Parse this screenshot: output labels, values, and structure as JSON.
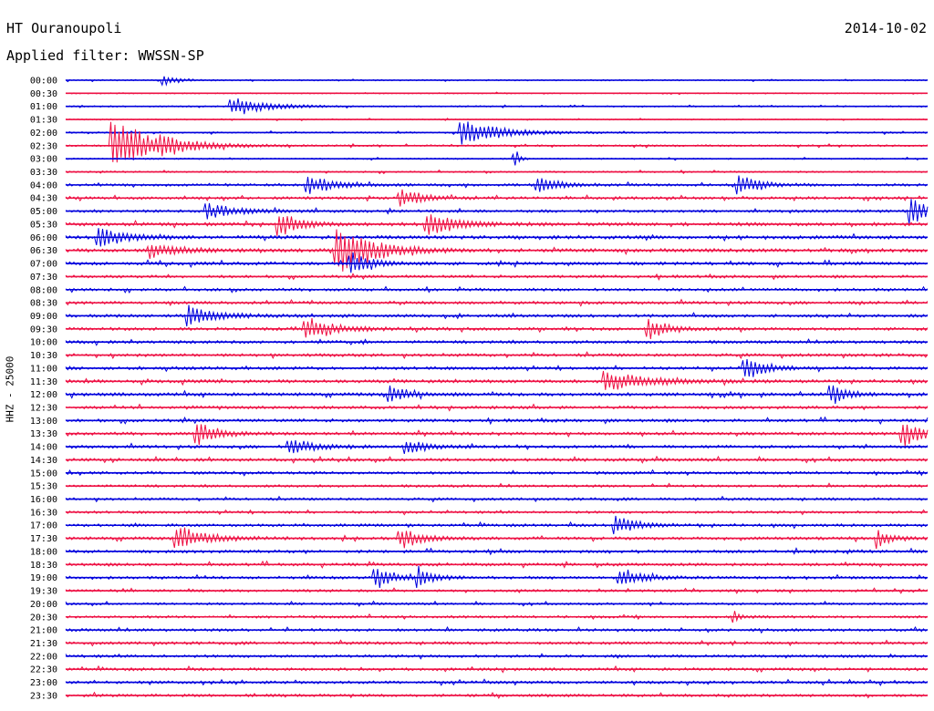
{
  "header": {
    "station": "HT Ouranoupoli",
    "date": "2014-10-02",
    "filter": "Applied filter: WWSSN-SP"
  },
  "chart_data": {
    "type": "line",
    "title": "HT Ouranoupoli",
    "subtitle": "Applied filter: WWSSN-SP",
    "ylabel": "HHZ - 25000",
    "xlabel": "",
    "grid": false,
    "colors": [
      "#0000dd",
      "#ee1144"
    ],
    "tick_labels": [
      "00:00",
      "00:30",
      "01:00",
      "01:30",
      "02:00",
      "02:30",
      "03:00",
      "03:30",
      "04:00",
      "04:30",
      "05:00",
      "05:30",
      "06:00",
      "06:30",
      "07:00",
      "07:30",
      "08:00",
      "08:30",
      "09:00",
      "09:30",
      "10:00",
      "10:30",
      "11:00",
      "11:30",
      "12:00",
      "12:30",
      "13:00",
      "13:30",
      "14:00",
      "14:30",
      "15:00",
      "15:30",
      "16:00",
      "16:30",
      "17:00",
      "17:30",
      "18:00",
      "18:30",
      "19:00",
      "19:30",
      "20:00",
      "20:30",
      "21:00",
      "21:30",
      "22:00",
      "22:30",
      "23:00",
      "23:30"
    ],
    "noise_levels": [
      0.6,
      0.5,
      0.6,
      0.5,
      0.7,
      0.8,
      0.6,
      0.7,
      1.1,
      1.2,
      1.2,
      1.5,
      1.5,
      1.5,
      1.4,
      1.2,
      1.2,
      1.3,
      1.3,
      1.3,
      1.3,
      1.3,
      1.3,
      1.4,
      1.4,
      1.3,
      1.3,
      1.3,
      1.3,
      1.3,
      1.2,
      1.1,
      1.1,
      1.1,
      1.2,
      1.3,
      1.3,
      1.3,
      1.2,
      1.1,
      1.0,
      1.1,
      1.2,
      1.2,
      1.2,
      1.2,
      1.2,
      1.2
    ],
    "events": [
      {
        "row": 0,
        "minute": 3.5,
        "amplitude": 5,
        "duration": 1
      },
      {
        "row": 2,
        "minute": 5.8,
        "amplitude": 11,
        "duration": 2.5
      },
      {
        "row": 4,
        "minute": 13.8,
        "amplitude": 14,
        "duration": 3
      },
      {
        "row": 5,
        "minute": 1.7,
        "amplitude": 30,
        "duration": 3
      },
      {
        "row": 5,
        "minute": 3.4,
        "amplitude": 6,
        "duration": 1.5
      },
      {
        "row": 6,
        "minute": 15.7,
        "amplitude": 9,
        "duration": 0.3
      },
      {
        "row": 8,
        "minute": 8.5,
        "amplitude": 10,
        "duration": 2
      },
      {
        "row": 8,
        "minute": 16.5,
        "amplitude": 9,
        "duration": 1.5
      },
      {
        "row": 8,
        "minute": 23.5,
        "amplitude": 10,
        "duration": 1.5
      },
      {
        "row": 9,
        "minute": 11.7,
        "amplitude": 9,
        "duration": 1.5
      },
      {
        "row": 10,
        "minute": 5,
        "amplitude": 8,
        "duration": 2
      },
      {
        "row": 10,
        "minute": 29.5,
        "amplitude": 14,
        "duration": 1.5
      },
      {
        "row": 11,
        "minute": 7.5,
        "amplitude": 12,
        "duration": 1.5
      },
      {
        "row": 11,
        "minute": 12.6,
        "amplitude": 13,
        "duration": 2
      },
      {
        "row": 12,
        "minute": 1.2,
        "amplitude": 10,
        "duration": 2
      },
      {
        "row": 13,
        "minute": 9.5,
        "amplitude": 28,
        "duration": 2.5
      },
      {
        "row": 13,
        "minute": 3,
        "amplitude": 8,
        "duration": 2
      },
      {
        "row": 14,
        "minute": 10,
        "amplitude": 11,
        "duration": 1.5
      },
      {
        "row": 18,
        "minute": 4.3,
        "amplitude": 12,
        "duration": 2
      },
      {
        "row": 19,
        "minute": 8.4,
        "amplitude": 14,
        "duration": 2
      },
      {
        "row": 19,
        "minute": 20.3,
        "amplitude": 11,
        "duration": 1.5
      },
      {
        "row": 22,
        "minute": 23.7,
        "amplitude": 12,
        "duration": 1.5
      },
      {
        "row": 23,
        "minute": 18.8,
        "amplitude": 11,
        "duration": 3
      },
      {
        "row": 24,
        "minute": 11.3,
        "amplitude": 8,
        "duration": 1.5
      },
      {
        "row": 24,
        "minute": 26.7,
        "amplitude": 11,
        "duration": 1
      },
      {
        "row": 27,
        "minute": 4.6,
        "amplitude": 13,
        "duration": 1.5
      },
      {
        "row": 27,
        "minute": 29.2,
        "amplitude": 14,
        "duration": 1.5
      },
      {
        "row": 28,
        "minute": 7.8,
        "amplitude": 8,
        "duration": 2
      },
      {
        "row": 28,
        "minute": 11.9,
        "amplitude": 8,
        "duration": 1.5
      },
      {
        "row": 35,
        "minute": 3.9,
        "amplitude": 15,
        "duration": 2
      },
      {
        "row": 35,
        "minute": 11.7,
        "amplitude": 11,
        "duration": 1.5
      },
      {
        "row": 35,
        "minute": 28.3,
        "amplitude": 10,
        "duration": 1
      },
      {
        "row": 34,
        "minute": 19.2,
        "amplitude": 10,
        "duration": 1.5
      },
      {
        "row": 38,
        "minute": 10.8,
        "amplitude": 13,
        "duration": 1.2
      },
      {
        "row": 38,
        "minute": 12.3,
        "amplitude": 10,
        "duration": 1
      },
      {
        "row": 38,
        "minute": 19.3,
        "amplitude": 12,
        "duration": 1.5
      },
      {
        "row": 41,
        "minute": 23.3,
        "amplitude": 6,
        "duration": 0.5
      }
    ]
  }
}
